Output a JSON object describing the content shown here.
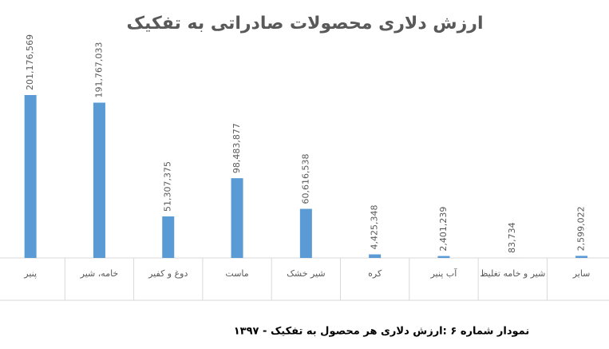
{
  "chart_data": {
    "type": "bar",
    "title": "ارزش دلاری محصولات صادراتی به تفکیک",
    "categories": [
      "پنیر",
      "خامه، شیر",
      "دوغ و کفیر",
      "ماست",
      "شیر خشک",
      "کره",
      "آب پنیر",
      "شیر و خامه تغلیظ",
      "سایر"
    ],
    "values": [
      201176569,
      191767033,
      51307375,
      98483877,
      60616538,
      4425348,
      2401239,
      83734,
      2599022
    ],
    "value_labels": [
      "201,176,569",
      "191,767,033",
      "51,307,375",
      "98,483,877",
      "60,616,538",
      "4,425,348",
      "2,401,239",
      "83,734",
      "2,599,022"
    ],
    "color": "#5b9bd5",
    "caption": "نمودار شماره ۶ :ارزش دلاری هر محصول به تفکیک - ۱۳۹۷"
  }
}
